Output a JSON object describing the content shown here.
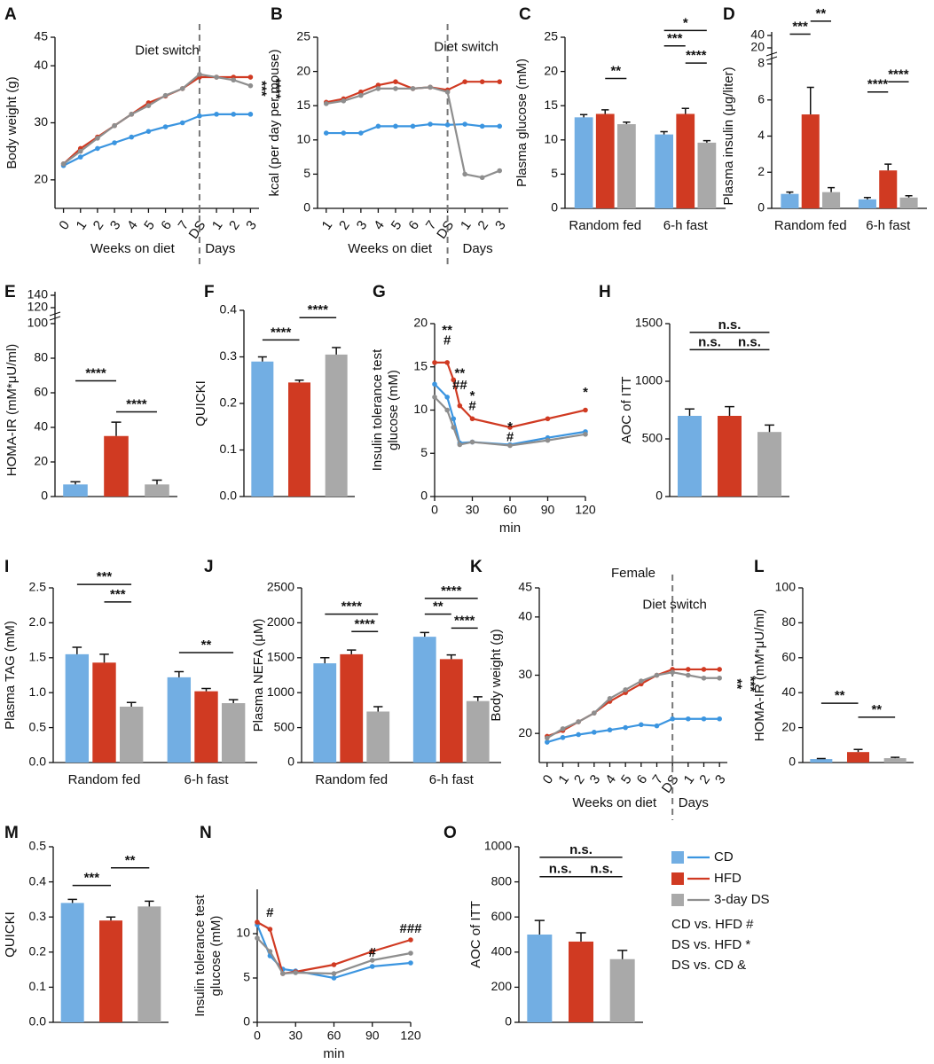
{
  "chart_data": [
    {
      "type": "line",
      "panel": "A",
      "y_label": "Body weight (g)",
      "categories": [
        "0",
        "1",
        "2",
        "3",
        "4",
        "5",
        "6",
        "7",
        "DS",
        "1",
        "2",
        "3"
      ],
      "x_groups": [
        "Weeks on diet",
        "Days"
      ],
      "ylim": [
        15,
        45
      ],
      "yticks": [
        20,
        30,
        40,
        45
      ],
      "series": [
        {
          "color": "#3b95e0",
          "values": [
            22.5,
            24,
            25.5,
            26.5,
            27.5,
            28.5,
            29.3,
            30,
            31.2,
            31.5,
            31.5,
            31.5
          ]
        },
        {
          "color": "#d03a22",
          "values": [
            22.8,
            25.5,
            27.5,
            29.5,
            31.5,
            33.5,
            34.7,
            36,
            38,
            38,
            38,
            38
          ]
        },
        {
          "color": "#8e8e8e",
          "values": [
            22.8,
            25,
            27.3,
            29.5,
            31.5,
            33,
            34.8,
            36,
            38.5,
            38,
            37.5,
            36.5
          ]
        }
      ],
      "annotations": [
        "Diet switch",
        "****",
        "***"
      ]
    },
    {
      "type": "line",
      "panel": "B",
      "y_label": "kcal (per day per mouse)",
      "categories": [
        "1",
        "2",
        "3",
        "4",
        "5",
        "6",
        "7",
        "DS",
        "1",
        "2",
        "3"
      ],
      "x_groups": [
        "Weeks on diet",
        "Days"
      ],
      "ylim": [
        0,
        25
      ],
      "yticks": [
        0,
        5,
        10,
        15,
        20,
        25
      ],
      "series": [
        {
          "color": "#3b95e0",
          "values": [
            11,
            11,
            11,
            12,
            12,
            12,
            12.3,
            12.2,
            12.3,
            12,
            12
          ]
        },
        {
          "color": "#d03a22",
          "values": [
            15.5,
            16,
            17,
            18,
            18.5,
            17.5,
            17.7,
            17.3,
            18.5,
            18.5,
            18.5
          ]
        },
        {
          "color": "#8e8e8e",
          "values": [
            15.3,
            15.7,
            16.5,
            17.5,
            17.5,
            17.5,
            17.7,
            17,
            5,
            4.5,
            5.5
          ]
        }
      ],
      "annotations": [
        "Diet switch"
      ]
    },
    {
      "type": "bar",
      "panel": "C",
      "y_label": "Plasma glucose (mM)",
      "categories": [
        "Random fed",
        "6-h fast"
      ],
      "ylim": [
        0,
        25
      ],
      "yticks": [
        0,
        5,
        10,
        15,
        20,
        25
      ],
      "series": [
        {
          "color": "#72aee3",
          "values": [
            13.3,
            10.8
          ],
          "errors": [
            0.4,
            0.4
          ]
        },
        {
          "color": "#d03a22",
          "values": [
            13.8,
            13.8
          ],
          "errors": [
            0.6,
            0.8
          ]
        },
        {
          "color": "#a9a9a9",
          "values": [
            12.3,
            9.6
          ],
          "errors": [
            0.3,
            0.3
          ]
        }
      ],
      "annotations": [
        "**",
        "***",
        "*",
        "****"
      ]
    },
    {
      "type": "bar",
      "panel": "D",
      "y_label": "Plasma insulin (μg/liter)",
      "categories": [
        "Random fed",
        "6-h fast"
      ],
      "ylim": [
        0,
        8
      ],
      "yticks": [
        0,
        2,
        4,
        6,
        8
      ],
      "y_upper_ticks": [
        20,
        40
      ],
      "series": [
        {
          "color": "#72aee3",
          "values": [
            0.8,
            0.5
          ],
          "errors": [
            0.1,
            0.1
          ]
        },
        {
          "color": "#d03a22",
          "values": [
            5.2,
            2.1
          ],
          "errors": [
            1.5,
            0.35
          ]
        },
        {
          "color": "#a9a9a9",
          "values": [
            0.9,
            0.6
          ],
          "errors": [
            0.25,
            0.1
          ]
        }
      ],
      "annotations": [
        "***",
        "**",
        "****",
        "****"
      ]
    },
    {
      "type": "bar",
      "panel": "E",
      "y_label": "HOMA-IR (mM*μU/ml)",
      "categories": [
        null,
        null,
        null
      ],
      "ylim": [
        0,
        100
      ],
      "yticks": [
        0,
        20,
        40,
        60,
        80,
        100
      ],
      "y_upper_ticks": [
        120,
        140
      ],
      "values": [
        7,
        35,
        7
      ],
      "errors": [
        1.5,
        8,
        2.5
      ],
      "colors": [
        "#72aee3",
        "#d03a22",
        "#a9a9a9"
      ],
      "annotations": [
        "****",
        "****"
      ]
    },
    {
      "type": "bar",
      "panel": "F",
      "y_label": "QUICKI",
      "categories": [
        null,
        null,
        null
      ],
      "ylim": [
        0,
        0.4
      ],
      "yticks": [
        {
          "value": 0,
          "label": "0.0"
        },
        0.1,
        0.2,
        0.3,
        0.4
      ],
      "values": [
        0.29,
        0.245,
        0.305
      ],
      "errors": [
        0.01,
        0.005,
        0.015
      ],
      "colors": [
        "#72aee3",
        "#d03a22",
        "#a9a9a9"
      ],
      "annotations": [
        "****",
        "****"
      ]
    },
    {
      "type": "line",
      "panel": "G",
      "y_label": [
        "Insulin tolerance test",
        "glucose (mM)"
      ],
      "x_label": "min",
      "x": [
        0,
        10,
        15,
        20,
        30,
        60,
        90,
        120
      ],
      "xlim": [
        0,
        120
      ],
      "xticks": [
        0,
        30,
        60,
        90,
        120
      ],
      "ylim": [
        0,
        20
      ],
      "yticks": [
        0,
        5,
        10,
        15,
        20
      ],
      "series": [
        {
          "color": "#3b95e0",
          "values": [
            13,
            11.5,
            9,
            6.2,
            6.3,
            6,
            6.8,
            7.5
          ]
        },
        {
          "color": "#d03a22",
          "values": [
            15.5,
            15.5,
            13.5,
            10.5,
            9,
            8,
            9,
            10
          ]
        },
        {
          "color": "#8e8e8e",
          "values": [
            11.5,
            10,
            8,
            6,
            6.3,
            5.9,
            6.5,
            7.2
          ]
        }
      ],
      "annotations": [
        "**",
        "#",
        "**",
        "##",
        "*",
        "#",
        "*",
        "#",
        "*"
      ]
    },
    {
      "type": "bar",
      "panel": "H",
      "y_label": "AOC of ITT",
      "categories": [
        null,
        null,
        null
      ],
      "ylim": [
        0,
        1500
      ],
      "yticks": [
        0,
        500,
        1000,
        1500
      ],
      "values": [
        700,
        700,
        560
      ],
      "errors": [
        60,
        80,
        60
      ],
      "colors": [
        "#72aee3",
        "#d03a22",
        "#a9a9a9"
      ],
      "annotations": [
        "n.s.",
        "n.s.",
        "n.s."
      ]
    },
    {
      "type": "bar",
      "panel": "I",
      "y_label": "Plasma TAG (mM)",
      "categories": [
        "Random fed",
        "6-h fast"
      ],
      "ylim": [
        0,
        2.5
      ],
      "yticks": [
        {
          "value": 0,
          "label": "0.0"
        },
        0.5,
        {
          "value": 1,
          "label": "1.0"
        },
        1.5,
        {
          "value": 2,
          "label": "2.0"
        },
        2.5
      ],
      "series": [
        {
          "color": "#72aee3",
          "values": [
            1.55,
            1.22
          ],
          "errors": [
            0.1,
            0.08
          ]
        },
        {
          "color": "#d03a22",
          "values": [
            1.43,
            1.02
          ],
          "errors": [
            0.12,
            0.04
          ]
        },
        {
          "color": "#a9a9a9",
          "values": [
            0.8,
            0.85
          ],
          "errors": [
            0.06,
            0.05
          ]
        }
      ],
      "annotations": [
        "***",
        "***",
        "**"
      ]
    },
    {
      "type": "bar",
      "panel": "J",
      "y_label": "Plasma NEFA (μM)",
      "categories": [
        "Random fed",
        "6-h fast"
      ],
      "ylim": [
        0,
        2500
      ],
      "yticks": [
        0,
        500,
        1000,
        1500,
        2000,
        2500
      ],
      "series": [
        {
          "color": "#72aee3",
          "values": [
            1420,
            1800
          ],
          "errors": [
            80,
            60
          ]
        },
        {
          "color": "#d03a22",
          "values": [
            1550,
            1480
          ],
          "errors": [
            60,
            60
          ]
        },
        {
          "color": "#a9a9a9",
          "values": [
            730,
            880
          ],
          "errors": [
            70,
            60
          ]
        }
      ],
      "annotations": [
        "****",
        "****",
        "****",
        "**",
        "****"
      ]
    },
    {
      "type": "line",
      "panel": "K",
      "title": "Female",
      "y_label": "Body weight (g)",
      "categories": [
        "0",
        "1",
        "2",
        "3",
        "4",
        "5",
        "6",
        "7",
        "DS",
        "1",
        "2",
        "3"
      ],
      "x_groups": [
        "Weeks on diet",
        "Days"
      ],
      "ylim": [
        15,
        45
      ],
      "yticks": [
        20,
        30,
        40,
        45
      ],
      "series": [
        {
          "color": "#3b95e0",
          "values": [
            18.5,
            19.3,
            19.8,
            20.2,
            20.6,
            21,
            21.5,
            21.3,
            22.5,
            22.5,
            22.5,
            22.5
          ]
        },
        {
          "color": "#d03a22",
          "values": [
            19.5,
            20.5,
            22,
            23.5,
            25.5,
            27,
            28.5,
            30,
            31,
            31,
            31,
            31
          ]
        },
        {
          "color": "#8e8e8e",
          "values": [
            19.2,
            20.8,
            22,
            23.5,
            26,
            27.5,
            29,
            30,
            30.5,
            30,
            29.5,
            29.5
          ]
        }
      ],
      "annotations": [
        "Diet switch",
        "**",
        "***"
      ]
    },
    {
      "type": "bar",
      "panel": "L",
      "y_label": "HOMA-IR (mM*μU/ml)",
      "categories": [
        null,
        null,
        null
      ],
      "ylim": [
        0,
        100
      ],
      "yticks": [
        0,
        20,
        40,
        60,
        80,
        100
      ],
      "values": [
        2,
        6,
        2.5
      ],
      "errors": [
        0.3,
        1.5,
        0.5
      ],
      "colors": [
        "#72aee3",
        "#d03a22",
        "#a9a9a9"
      ],
      "annotations": [
        "**",
        "**"
      ]
    },
    {
      "type": "bar",
      "panel": "M",
      "y_label": "QUICKI",
      "categories": [
        null,
        null,
        null
      ],
      "ylim": [
        0,
        0.5
      ],
      "yticks": [
        {
          "value": 0,
          "label": "0.0"
        },
        0.1,
        0.2,
        0.3,
        0.4,
        0.5
      ],
      "values": [
        0.34,
        0.29,
        0.33
      ],
      "errors": [
        0.01,
        0.01,
        0.015
      ],
      "colors": [
        "#72aee3",
        "#d03a22",
        "#a9a9a9"
      ],
      "annotations": [
        "***",
        "**"
      ]
    },
    {
      "type": "line",
      "panel": "N",
      "y_label": [
        "Insulin tolerance test",
        "glucose (mM)"
      ],
      "x_label": "min",
      "x": [
        0,
        10,
        20,
        30,
        60,
        90,
        120
      ],
      "xlim": [
        0,
        120
      ],
      "xticks": [
        0,
        30,
        60,
        90,
        120
      ],
      "ylim": [
        0,
        15
      ],
      "yticks": [
        0,
        5,
        10
      ],
      "series": [
        {
          "color": "#3b95e0",
          "values": [
            11,
            7.5,
            6,
            5.8,
            5,
            6.3,
            6.7
          ]
        },
        {
          "color": "#d03a22",
          "values": [
            11.3,
            10.5,
            5.5,
            5.7,
            6.5,
            8,
            9.3
          ]
        },
        {
          "color": "#8e8e8e",
          "values": [
            9.5,
            8,
            5.5,
            5.6,
            5.5,
            7,
            7.8
          ]
        }
      ],
      "annotations": [
        "#",
        "#",
        "###"
      ]
    },
    {
      "type": "bar",
      "panel": "O",
      "y_label": "AOC of ITT",
      "categories": [
        null,
        null,
        null
      ],
      "ylim": [
        0,
        1000
      ],
      "yticks": [
        0,
        200,
        400,
        600,
        800,
        1000
      ],
      "values": [
        500,
        460,
        360
      ],
      "errors": [
        80,
        50,
        50
      ],
      "colors": [
        "#72aee3",
        "#d03a22",
        "#a9a9a9"
      ],
      "annotations": [
        "n.s.",
        "n.s.",
        "n.s."
      ]
    }
  ],
  "legend": {
    "entries": [
      {
        "name": "CD",
        "color": "#72aee3",
        "line": "#3b95e0"
      },
      {
        "name": "HFD",
        "color": "#d03a22",
        "line": "#d03a22"
      },
      {
        "name": "3-day DS",
        "color": "#a9a9a9",
        "line": "#8e8e8e"
      }
    ],
    "notes": [
      "CD vs.  HFD #",
      "DS vs. HFD *",
      "DS vs. CD &"
    ]
  }
}
